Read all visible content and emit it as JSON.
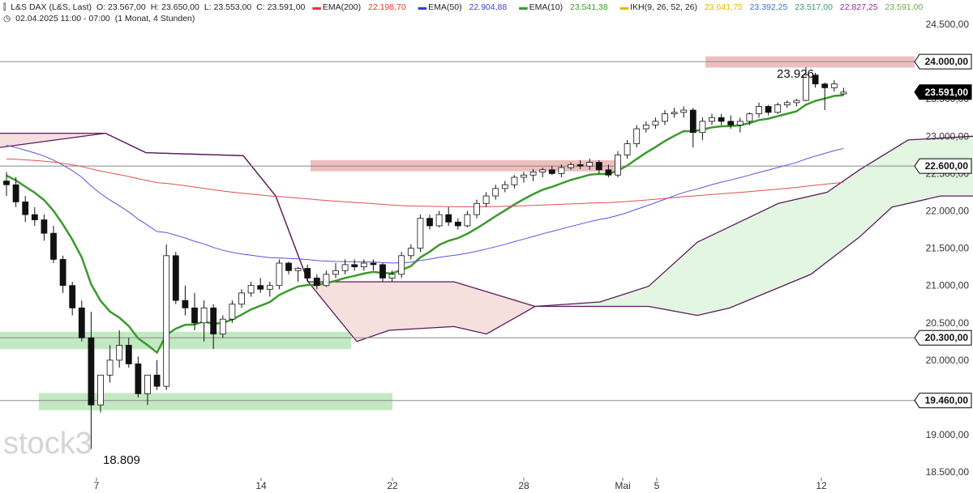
{
  "header": {
    "symbol_icon": "candle-chart-icon",
    "instrument": "L&S DAX (L&S, Last)",
    "ohlc": {
      "o": "O: 23.567,00",
      "h": "H: 23.650,00",
      "l": "L: 23.553,00",
      "c": "C: 23.591,00"
    },
    "indicators": [
      {
        "name": "EMA(200)",
        "value": "22.198,70",
        "color": "#e53935"
      },
      {
        "name": "EMA(50)",
        "value": "22.904,88",
        "color": "#3f3fd0"
      },
      {
        "name": "EMA(10)",
        "value": "23.541,38",
        "color": "#3a9a2c"
      },
      {
        "name": "IKH(9, 26, 52, 26)",
        "value": "23.641,75",
        "color": "#e6b800",
        "extra": [
          {
            "value": "23.392,25",
            "color": "#3f6fd0"
          },
          {
            "value": "23.517,00",
            "color": "#2e9c6a"
          },
          {
            "value": "22.827,25",
            "color": "#8e2b8e"
          },
          {
            "value": "23.591,00",
            "color": "#6aa84f"
          }
        ]
      }
    ],
    "clock_icon": "clock-icon",
    "timestamp": "02.04.2025 11:00 - 07:00",
    "timeframe": "(1 Monat, 4 Stunden)"
  },
  "watermark": "stock3",
  "annotations": {
    "high_label": "23.926",
    "low_label": "18.809"
  },
  "colors": {
    "candle_up": "#ffffff",
    "candle_down": "#111111",
    "ema10": "#3a9a2c",
    "ema50": "#5555dd",
    "ema200": "#e05050",
    "cloud_bull": "#dff5df",
    "cloud_bear": "#f8dede",
    "span_line": "#5a1a5a",
    "resistance_zone": "#e8a8a8",
    "support_zone": "#a8e0a8"
  },
  "chart_data": {
    "type": "candlestick",
    "y_axis": {
      "ticks": [
        "24.500,00",
        "24.000,00",
        "23.500,00",
        "23.000,00",
        "22.500,00",
        "22.000,00",
        "21.500,00",
        "21.000,00",
        "20.500,00",
        "20.000,00",
        "19.500,00",
        "19.000,00",
        "18.500,00"
      ],
      "tick_values": [
        24500,
        24000,
        23500,
        23000,
        22500,
        22000,
        21500,
        21000,
        20500,
        20000,
        19500,
        19000,
        18500
      ]
    },
    "x_axis": {
      "labels": [
        "7",
        "14",
        "22",
        "28",
        "Mai",
        "5",
        "12"
      ]
    },
    "price_levels": [
      {
        "label": "24.000,00",
        "value": 24000
      },
      {
        "label": "23.591,00",
        "value": 23591,
        "current": true
      },
      {
        "label": "22.600,00",
        "value": 22600
      },
      {
        "label": "20.300,00",
        "value": 20300
      },
      {
        "label": "19.460,00",
        "value": 19460
      }
    ],
    "zones": [
      {
        "kind": "resistance",
        "from": 23920,
        "to": 24070
      },
      {
        "kind": "resistance",
        "from": 22530,
        "to": 22680
      },
      {
        "kind": "support",
        "from": 20150,
        "to": 20380
      },
      {
        "kind": "support",
        "from": 19330,
        "to": 19560
      }
    ],
    "candles": [
      [
        22400,
        22520,
        22200,
        22350
      ],
      [
        22350,
        22450,
        22050,
        22120
      ],
      [
        22120,
        22200,
        21850,
        21950
      ],
      [
        21950,
        22050,
        21800,
        21880
      ],
      [
        21880,
        21950,
        21600,
        21700
      ],
      [
        21700,
        21800,
        21300,
        21350
      ],
      [
        21350,
        21400,
        20900,
        21000
      ],
      [
        21000,
        21050,
        20600,
        20700
      ],
      [
        20700,
        20800,
        20250,
        20300
      ],
      [
        20300,
        20650,
        18809,
        19400
      ],
      [
        19400,
        19800,
        19300,
        19800
      ],
      [
        19800,
        20200,
        19700,
        20000
      ],
      [
        20000,
        20400,
        19900,
        20200
      ],
      [
        20200,
        20300,
        19900,
        19950
      ],
      [
        19950,
        20050,
        19500,
        19550
      ],
      [
        19550,
        19800,
        19400,
        19800
      ],
      [
        19800,
        20000,
        19600,
        19650
      ],
      [
        19650,
        21550,
        19600,
        21400
      ],
      [
        21400,
        21450,
        20750,
        20800
      ],
      [
        20800,
        21000,
        20600,
        20700
      ],
      [
        20700,
        20900,
        20400,
        20500
      ],
      [
        20500,
        20800,
        20250,
        20700
      ],
      [
        20700,
        20750,
        20150,
        20350
      ],
      [
        20350,
        20600,
        20300,
        20550
      ],
      [
        20550,
        20800,
        20500,
        20750
      ],
      [
        20750,
        20950,
        20700,
        20900
      ],
      [
        20900,
        21050,
        20850,
        21000
      ],
      [
        21000,
        21100,
        20900,
        20950
      ],
      [
        20950,
        21050,
        20850,
        21000
      ],
      [
        21000,
        21350,
        20950,
        21300
      ],
      [
        21300,
        21320,
        21150,
        21200
      ],
      [
        21200,
        21250,
        21050,
        21230
      ],
      [
        21230,
        21280,
        21050,
        21100
      ],
      [
        21100,
        21150,
        20950,
        21000
      ],
      [
        21000,
        21200,
        20980,
        21150
      ],
      [
        21150,
        21300,
        21100,
        21200
      ],
      [
        21200,
        21350,
        21150,
        21280
      ],
      [
        21280,
        21350,
        21200,
        21250
      ],
      [
        21250,
        21350,
        21200,
        21300
      ],
      [
        21300,
        21350,
        21200,
        21280
      ],
      [
        21280,
        21300,
        21050,
        21100
      ],
      [
        21100,
        21200,
        21050,
        21150
      ],
      [
        21150,
        21450,
        21100,
        21400
      ],
      [
        21400,
        21550,
        21350,
        21500
      ],
      [
        21500,
        21950,
        21450,
        21900
      ],
      [
        21900,
        21950,
        21750,
        21800
      ],
      [
        21800,
        22000,
        21780,
        21950
      ],
      [
        21950,
        22050,
        21800,
        21850
      ],
      [
        21850,
        21900,
        21750,
        21800
      ],
      [
        21800,
        22000,
        21780,
        21950
      ],
      [
        21950,
        22150,
        21900,
        22100
      ],
      [
        22100,
        22250,
        22050,
        22200
      ],
      [
        22200,
        22350,
        22150,
        22300
      ],
      [
        22300,
        22400,
        22250,
        22350
      ],
      [
        22350,
        22480,
        22300,
        22450
      ],
      [
        22450,
        22520,
        22380,
        22480
      ],
      [
        22480,
        22560,
        22400,
        22520
      ],
      [
        22520,
        22580,
        22450,
        22550
      ],
      [
        22550,
        22600,
        22480,
        22500
      ],
      [
        22500,
        22620,
        22450,
        22580
      ],
      [
        22580,
        22650,
        22550,
        22620
      ],
      [
        22620,
        22680,
        22560,
        22600
      ],
      [
        22600,
        22700,
        22550,
        22650
      ],
      [
        22650,
        22680,
        22500,
        22550
      ],
      [
        22550,
        22620,
        22450,
        22480
      ],
      [
        22480,
        22800,
        22450,
        22750
      ],
      [
        22750,
        22950,
        22700,
        22900
      ],
      [
        22900,
        23150,
        22850,
        23100
      ],
      [
        23100,
        23200,
        23050,
        23150
      ],
      [
        23150,
        23250,
        23100,
        23200
      ],
      [
        23200,
        23350,
        23150,
        23300
      ],
      [
        23300,
        23380,
        23250,
        23320
      ],
      [
        23320,
        23400,
        23250,
        23350
      ],
      [
        23350,
        23380,
        22850,
        23050
      ],
      [
        23050,
        23250,
        22950,
        23200
      ],
      [
        23200,
        23300,
        23150,
        23250
      ],
      [
        23250,
        23300,
        23150,
        23200
      ],
      [
        23200,
        23280,
        23100,
        23150
      ],
      [
        23150,
        23250,
        23050,
        23200
      ],
      [
        23200,
        23320,
        23150,
        23300
      ],
      [
        23300,
        23450,
        23250,
        23400
      ],
      [
        23400,
        23420,
        23280,
        23320
      ],
      [
        23320,
        23450,
        23300,
        23420
      ],
      [
        23420,
        23480,
        23380,
        23450
      ],
      [
        23450,
        23500,
        23400,
        23480
      ],
      [
        23480,
        23926,
        23470,
        23820
      ],
      [
        23820,
        23850,
        23650,
        23700
      ],
      [
        23700,
        23720,
        23350,
        23650
      ],
      [
        23650,
        23750,
        23600,
        23700
      ],
      [
        23567,
        23650,
        23553,
        23591
      ]
    ]
  }
}
